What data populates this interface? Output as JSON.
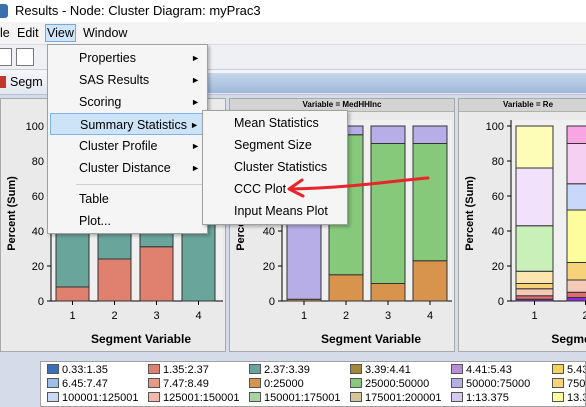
{
  "window": {
    "title": "Results - Node: Cluster  Diagram: myPrac3"
  },
  "menubar": {
    "items": [
      "le",
      "Edit",
      "View",
      "Window"
    ]
  },
  "tab": {
    "label": "Segm"
  },
  "view_menu": {
    "items": [
      {
        "label": "Properties",
        "submenu": true
      },
      {
        "label": "SAS Results",
        "submenu": true
      },
      {
        "label": "Scoring",
        "submenu": true
      },
      {
        "label": "Summary Statistics",
        "submenu": true
      },
      {
        "label": "Cluster Profile",
        "submenu": true
      },
      {
        "label": "Cluster Distance",
        "submenu": true
      },
      {
        "label": "Table",
        "submenu": false
      },
      {
        "label": "Plot...",
        "submenu": false
      }
    ]
  },
  "summary_menu": {
    "items": [
      "Mean Statistics",
      "Segment Size",
      "Cluster Statistics",
      "CCC Plot",
      "Input Means Plot"
    ]
  },
  "charts": {
    "ylabel": "Percent (Sum)",
    "xlabel": "Segment Variable",
    "panel2_title": "Variable = MedHHInc",
    "panel3_title": "Variable = Re",
    "yticks": [
      "0",
      "20",
      "40",
      "60",
      "80",
      "100"
    ],
    "panel1_xticks": [
      "1",
      "2",
      "3",
      "4"
    ],
    "panel2_xticks": [
      "1",
      "2",
      "3",
      "4"
    ],
    "panel3_xticks": [
      "1",
      "2"
    ],
    "panel3_xlabel": "Segme"
  },
  "chart_data": {
    "type": "bar",
    "stacked": true,
    "ylim": [
      0,
      100
    ],
    "panels": [
      {
        "categories": [
          "1",
          "2",
          "3",
          "4"
        ],
        "segments": [
          [
            {
              "color": "#e0806e",
              "value": 8
            },
            {
              "color": "#6aa59c",
              "value": 92
            }
          ],
          [
            {
              "color": "#e0806e",
              "value": 24
            },
            {
              "color": "#6aa59c",
              "value": 76
            }
          ],
          [
            {
              "color": "#e0806e",
              "value": 31
            },
            {
              "color": "#6aa59c",
              "value": 69
            }
          ],
          [
            {
              "color": "#6aa59c",
              "value": 100
            }
          ]
        ]
      },
      {
        "categories": [
          "1",
          "2",
          "3",
          "4"
        ],
        "segments": [
          [
            {
              "color": "#d8944c",
              "value": 1
            },
            {
              "color": "#b7aee8",
              "value": 99
            }
          ],
          [
            {
              "color": "#d8944c",
              "value": 15
            },
            {
              "color": "#86c97a",
              "value": 80
            },
            {
              "color": "#b7aee8",
              "value": 5
            }
          ],
          [
            {
              "color": "#d8944c",
              "value": 10
            },
            {
              "color": "#86c97a",
              "value": 80
            },
            {
              "color": "#b7aee8",
              "value": 10
            }
          ],
          [
            {
              "color": "#d8944c",
              "value": 23
            },
            {
              "color": "#86c97a",
              "value": 67
            },
            {
              "color": "#b7aee8",
              "value": 10
            }
          ]
        ]
      },
      {
        "categories": [
          "1",
          "2"
        ],
        "segments": [
          [
            {
              "color": "#8a2be2",
              "value": 1
            },
            {
              "color": "#e06b6b",
              "value": 2
            },
            {
              "color": "#f5c9b8",
              "value": 4
            },
            {
              "color": "#f6d27a",
              "value": 3
            },
            {
              "color": "#fbe6b0",
              "value": 7
            },
            {
              "color": "#c8f0b8",
              "value": 26
            },
            {
              "color": "#f1e1fb",
              "value": 33
            },
            {
              "color": "#fdfdb8",
              "value": 24
            }
          ],
          [
            {
              "color": "#8a2be2",
              "value": 2
            },
            {
              "color": "#e06b6b",
              "value": 3
            },
            {
              "color": "#f5c9b8",
              "value": 7
            },
            {
              "color": "#f6d27a",
              "value": 10
            },
            {
              "color": "#fdfd9e",
              "value": 30
            },
            {
              "color": "#c9d8fa",
              "value": 15
            },
            {
              "color": "#f5d0f3",
              "value": 23
            },
            {
              "color": "#f7a5e3",
              "value": 10
            }
          ]
        ]
      }
    ]
  },
  "legend": {
    "items": [
      {
        "label": "0.33:1.35",
        "color": "#3b6fb6"
      },
      {
        "label": "1.35:2.37",
        "color": "#e0806e"
      },
      {
        "label": "2.37:3.39",
        "color": "#6aa59c"
      },
      {
        "label": "3.39:4.41",
        "color": "#a3883b"
      },
      {
        "label": "4.41:5.43",
        "color": "#b98ed6"
      },
      {
        "label": "5.43",
        "color": "#f2d15f"
      },
      {
        "label": "6.45:7.47",
        "color": "#9bbfe6"
      },
      {
        "label": "7.47:8.49",
        "color": "#e79a86"
      },
      {
        "label": "0:25000",
        "color": "#d8944c"
      },
      {
        "label": "25000:50000",
        "color": "#86c97a"
      },
      {
        "label": "50000:75000",
        "color": "#b7aee8"
      },
      {
        "label": "750",
        "color": "#f6d27a"
      },
      {
        "label": "100001:125001",
        "color": "#c8daf4"
      },
      {
        "label": "125001:150001",
        "color": "#f2b9ac"
      },
      {
        "label": "150001:175001",
        "color": "#a8d3a3"
      },
      {
        "label": "175001:200001",
        "color": "#d6c39a"
      },
      {
        "label": "1:13.375",
        "color": "#d6c8ef"
      },
      {
        "label": "13.3",
        "color": "#fdfd9e"
      }
    ]
  }
}
